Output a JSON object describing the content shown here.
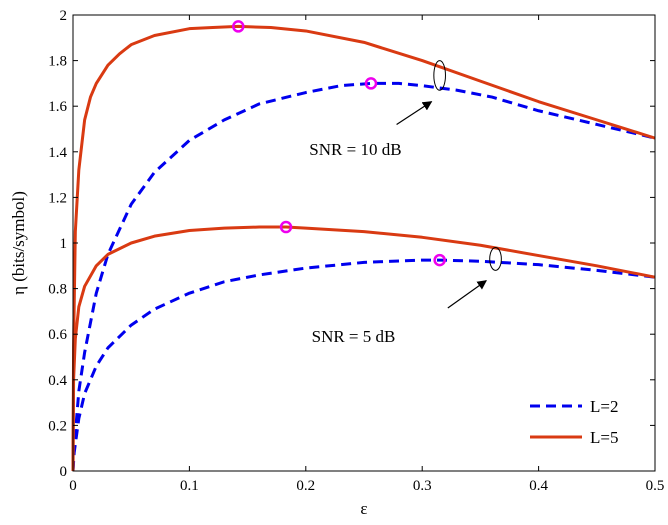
{
  "chart_data": {
    "type": "line",
    "xlabel": "ε",
    "ylabel": "η (bits/symbol)",
    "xlim": [
      0,
      0.5
    ],
    "ylim": [
      0,
      2
    ],
    "xticks": [
      "0",
      "0.1",
      "0.2",
      "0.3",
      "0.4",
      "0.5"
    ],
    "yticks": [
      "0",
      "0.2",
      "0.4",
      "0.6",
      "0.8",
      "1",
      "1.2",
      "1.4",
      "1.6",
      "1.8",
      "2"
    ],
    "grid": false,
    "legend_position": "bottom-right",
    "legend": [
      {
        "label": "L=2",
        "color": "#0000ee",
        "dash": "dashed"
      },
      {
        "label": "L=5",
        "color": "#d93a12",
        "dash": "solid"
      }
    ],
    "series": [
      {
        "group": "SNR = 10 dB",
        "legend_index": 0,
        "color": "#0000ee",
        "dash": "dashed",
        "x": [
          0.001,
          0.005,
          0.01,
          0.02,
          0.03,
          0.05,
          0.07,
          0.1,
          0.13,
          0.16,
          0.2,
          0.23,
          0.256,
          0.28,
          0.3,
          0.33,
          0.36,
          0.4,
          0.45,
          0.5
        ],
        "y": [
          0.1,
          0.35,
          0.52,
          0.78,
          0.95,
          1.17,
          1.31,
          1.45,
          1.54,
          1.61,
          1.66,
          1.69,
          1.7,
          1.7,
          1.69,
          1.67,
          1.64,
          1.58,
          1.52,
          1.46
        ]
      },
      {
        "group": "SNR = 10 dB",
        "legend_index": 1,
        "color": "#d93a12",
        "dash": "solid",
        "x": [
          0.0005,
          0.002,
          0.005,
          0.01,
          0.015,
          0.02,
          0.03,
          0.04,
          0.05,
          0.07,
          0.1,
          0.12,
          0.142,
          0.17,
          0.2,
          0.25,
          0.3,
          0.35,
          0.4,
          0.45,
          0.5
        ],
        "y": [
          0.55,
          1.05,
          1.32,
          1.54,
          1.64,
          1.7,
          1.78,
          1.83,
          1.87,
          1.91,
          1.94,
          1.945,
          1.95,
          1.945,
          1.93,
          1.88,
          1.8,
          1.71,
          1.62,
          1.54,
          1.46
        ]
      },
      {
        "group": "SNR = 5 dB",
        "legend_index": 0,
        "color": "#0000ee",
        "dash": "dashed",
        "x": [
          0.001,
          0.005,
          0.01,
          0.02,
          0.03,
          0.05,
          0.07,
          0.1,
          0.13,
          0.16,
          0.2,
          0.25,
          0.3,
          0.315,
          0.35,
          0.4,
          0.45,
          0.5
        ],
        "y": [
          0.08,
          0.23,
          0.34,
          0.46,
          0.54,
          0.64,
          0.71,
          0.78,
          0.83,
          0.86,
          0.89,
          0.915,
          0.925,
          0.925,
          0.92,
          0.905,
          0.88,
          0.85
        ]
      },
      {
        "group": "SNR = 5 dB",
        "legend_index": 1,
        "color": "#d93a12",
        "dash": "solid",
        "x": [
          0.0005,
          0.002,
          0.005,
          0.01,
          0.02,
          0.03,
          0.05,
          0.07,
          0.1,
          0.13,
          0.16,
          0.183,
          0.2,
          0.25,
          0.3,
          0.35,
          0.4,
          0.45,
          0.5
        ],
        "y": [
          0.4,
          0.58,
          0.72,
          0.81,
          0.9,
          0.95,
          1.0,
          1.03,
          1.055,
          1.065,
          1.07,
          1.07,
          1.065,
          1.05,
          1.025,
          0.99,
          0.945,
          0.9,
          0.85
        ]
      }
    ],
    "markers": [
      {
        "x": 0.142,
        "y": 1.95,
        "color": "#ee00ee"
      },
      {
        "x": 0.256,
        "y": 1.7,
        "color": "#ee00ee"
      },
      {
        "x": 0.183,
        "y": 1.07,
        "color": "#ee00ee"
      },
      {
        "x": 0.315,
        "y": 0.925,
        "color": "#ee00ee"
      }
    ],
    "annotations": [
      {
        "text": "SNR = 10 dB",
        "text_x": 0.203,
        "text_y": 1.385,
        "arrow_from": [
          0.278,
          1.52
        ],
        "arrow_to": [
          0.308,
          1.62
        ],
        "ellipse_center": [
          0.315,
          1.735
        ],
        "ellipse_radius": [
          0.005,
          0.065
        ]
      },
      {
        "text": "SNR = 5 dB",
        "text_x": 0.205,
        "text_y": 0.565,
        "arrow_from": [
          0.322,
          0.715
        ],
        "arrow_to": [
          0.355,
          0.835
        ],
        "ellipse_center": [
          0.363,
          0.93
        ],
        "ellipse_radius": [
          0.005,
          0.05
        ]
      }
    ]
  }
}
